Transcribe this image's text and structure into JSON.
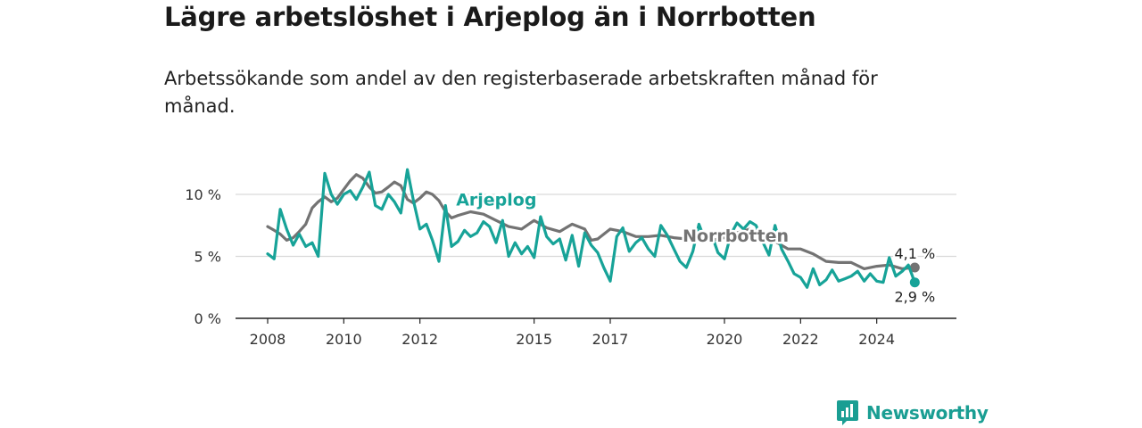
{
  "title": "Lägre arbetslöshet i Arjeplog än i Norrbotten",
  "subtitle": "Arbetssökande som andel av den registerbaserade arbetskraften månad för månad.",
  "brand": {
    "name": "Newsworthy"
  },
  "colors": {
    "arjeplog": "#17a398",
    "norrbotten": "#737373",
    "grid": "#d9d9d9",
    "axis": "#222222",
    "brand": "#1a9e93"
  },
  "chart_data": {
    "type": "line",
    "title": "Lägre arbetslöshet i Arjeplog än i Norrbotten",
    "xlim": [
      2008,
      2025.25
    ],
    "ylim": [
      0,
      12
    ],
    "grid": "horizontal",
    "x_ticks": [
      {
        "value": 2008,
        "label": "2008"
      },
      {
        "value": 2010,
        "label": "2010"
      },
      {
        "value": 2012,
        "label": "2012"
      },
      {
        "value": 2015,
        "label": "2015"
      },
      {
        "value": 2017,
        "label": "2017"
      },
      {
        "value": 2020,
        "label": "2020"
      },
      {
        "value": 2022,
        "label": "2022"
      },
      {
        "value": 2024,
        "label": "2024"
      }
    ],
    "y_ticks": [
      {
        "value": 0,
        "label": "0 %"
      },
      {
        "value": 5,
        "label": "5 %"
      },
      {
        "value": 10,
        "label": "10 %"
      }
    ],
    "series": [
      {
        "name": "Norrbotten",
        "color": "#737373",
        "end_label": "4,1 %",
        "label_pos": [
          2018.9,
          6.2
        ],
        "points": [
          [
            2008.0,
            7.4
          ],
          [
            2008.17,
            7.1
          ],
          [
            2008.33,
            6.8
          ],
          [
            2008.5,
            6.3
          ],
          [
            2008.67,
            6.5
          ],
          [
            2008.83,
            7.0
          ],
          [
            2009.0,
            7.6
          ],
          [
            2009.17,
            8.9
          ],
          [
            2009.33,
            9.4
          ],
          [
            2009.5,
            9.8
          ],
          [
            2009.67,
            9.4
          ],
          [
            2009.83,
            9.7
          ],
          [
            2010.0,
            10.4
          ],
          [
            2010.17,
            11.1
          ],
          [
            2010.33,
            11.6
          ],
          [
            2010.5,
            11.3
          ],
          [
            2010.67,
            10.6
          ],
          [
            2010.83,
            10.1
          ],
          [
            2011.0,
            10.2
          ],
          [
            2011.17,
            10.6
          ],
          [
            2011.33,
            11.0
          ],
          [
            2011.5,
            10.7
          ],
          [
            2011.67,
            9.6
          ],
          [
            2011.83,
            9.3
          ],
          [
            2012.0,
            9.7
          ],
          [
            2012.17,
            10.2
          ],
          [
            2012.33,
            10.0
          ],
          [
            2012.5,
            9.5
          ],
          [
            2012.67,
            8.6
          ],
          [
            2012.83,
            8.1
          ],
          [
            2013.0,
            8.3
          ],
          [
            2013.33,
            8.6
          ],
          [
            2013.67,
            8.4
          ],
          [
            2014.0,
            7.9
          ],
          [
            2014.33,
            7.4
          ],
          [
            2014.67,
            7.2
          ],
          [
            2015.0,
            7.9
          ],
          [
            2015.33,
            7.3
          ],
          [
            2015.67,
            7.0
          ],
          [
            2016.0,
            7.6
          ],
          [
            2016.33,
            7.2
          ],
          [
            2016.5,
            6.3
          ],
          [
            2016.67,
            6.4
          ],
          [
            2017.0,
            7.2
          ],
          [
            2017.33,
            7.0
          ],
          [
            2017.67,
            6.6
          ],
          [
            2018.0,
            6.6
          ],
          [
            2018.33,
            6.7
          ],
          [
            2018.67,
            6.5
          ],
          [
            2019.0,
            6.4
          ],
          [
            2019.33,
            6.6
          ],
          [
            2019.67,
            6.3
          ],
          [
            2020.0,
            6.5
          ],
          [
            2020.33,
            6.9
          ],
          [
            2020.67,
            7.2
          ],
          [
            2021.0,
            6.8
          ],
          [
            2021.33,
            6.2
          ],
          [
            2021.67,
            5.6
          ],
          [
            2022.0,
            5.6
          ],
          [
            2022.33,
            5.2
          ],
          [
            2022.67,
            4.6
          ],
          [
            2023.0,
            4.5
          ],
          [
            2023.33,
            4.5
          ],
          [
            2023.67,
            4.0
          ],
          [
            2024.0,
            4.2
          ],
          [
            2024.33,
            4.3
          ],
          [
            2024.67,
            4.0
          ],
          [
            2025.0,
            4.1
          ]
        ]
      },
      {
        "name": "Arjeplog",
        "color": "#17a398",
        "end_label": "2,9 %",
        "label_pos": [
          2012.95,
          9.1
        ],
        "points": [
          [
            2008.0,
            5.2
          ],
          [
            2008.17,
            4.8
          ],
          [
            2008.33,
            8.8
          ],
          [
            2008.5,
            7.2
          ],
          [
            2008.67,
            5.9
          ],
          [
            2008.83,
            6.8
          ],
          [
            2009.0,
            5.8
          ],
          [
            2009.17,
            6.1
          ],
          [
            2009.33,
            5.0
          ],
          [
            2009.5,
            11.7
          ],
          [
            2009.67,
            10.0
          ],
          [
            2009.83,
            9.2
          ],
          [
            2010.0,
            10.0
          ],
          [
            2010.17,
            10.3
          ],
          [
            2010.33,
            9.6
          ],
          [
            2010.5,
            10.6
          ],
          [
            2010.67,
            11.8
          ],
          [
            2010.83,
            9.1
          ],
          [
            2011.0,
            8.8
          ],
          [
            2011.17,
            10.0
          ],
          [
            2011.33,
            9.4
          ],
          [
            2011.5,
            8.5
          ],
          [
            2011.67,
            12.0
          ],
          [
            2011.83,
            9.5
          ],
          [
            2012.0,
            7.2
          ],
          [
            2012.17,
            7.6
          ],
          [
            2012.33,
            6.3
          ],
          [
            2012.5,
            4.6
          ],
          [
            2012.67,
            9.1
          ],
          [
            2012.83,
            5.8
          ],
          [
            2013.0,
            6.2
          ],
          [
            2013.17,
            7.1
          ],
          [
            2013.33,
            6.6
          ],
          [
            2013.5,
            6.9
          ],
          [
            2013.67,
            7.8
          ],
          [
            2013.83,
            7.4
          ],
          [
            2014.0,
            6.1
          ],
          [
            2014.17,
            7.9
          ],
          [
            2014.33,
            5.0
          ],
          [
            2014.5,
            6.1
          ],
          [
            2014.67,
            5.2
          ],
          [
            2014.83,
            5.8
          ],
          [
            2015.0,
            4.9
          ],
          [
            2015.17,
            8.2
          ],
          [
            2015.33,
            6.6
          ],
          [
            2015.5,
            6.0
          ],
          [
            2015.67,
            6.4
          ],
          [
            2015.83,
            4.7
          ],
          [
            2016.0,
            6.7
          ],
          [
            2016.17,
            4.2
          ],
          [
            2016.33,
            6.9
          ],
          [
            2016.5,
            5.9
          ],
          [
            2016.67,
            5.3
          ],
          [
            2016.83,
            4.1
          ],
          [
            2017.0,
            3.0
          ],
          [
            2017.17,
            6.6
          ],
          [
            2017.33,
            7.3
          ],
          [
            2017.5,
            5.4
          ],
          [
            2017.67,
            6.1
          ],
          [
            2017.83,
            6.5
          ],
          [
            2018.0,
            5.6
          ],
          [
            2018.17,
            5.0
          ],
          [
            2018.33,
            7.5
          ],
          [
            2018.5,
            6.7
          ],
          [
            2018.67,
            5.6
          ],
          [
            2018.83,
            4.6
          ],
          [
            2019.0,
            4.1
          ],
          [
            2019.17,
            5.4
          ],
          [
            2019.33,
            7.6
          ],
          [
            2019.5,
            6.2
          ],
          [
            2019.67,
            6.7
          ],
          [
            2019.83,
            5.3
          ],
          [
            2020.0,
            4.8
          ],
          [
            2020.17,
            6.8
          ],
          [
            2020.33,
            7.7
          ],
          [
            2020.5,
            7.2
          ],
          [
            2020.67,
            7.8
          ],
          [
            2020.83,
            7.5
          ],
          [
            2021.0,
            6.2
          ],
          [
            2021.17,
            5.1
          ],
          [
            2021.33,
            7.5
          ],
          [
            2021.5,
            5.6
          ],
          [
            2021.67,
            4.6
          ],
          [
            2021.83,
            3.6
          ],
          [
            2022.0,
            3.3
          ],
          [
            2022.17,
            2.5
          ],
          [
            2022.33,
            4.0
          ],
          [
            2022.5,
            2.7
          ],
          [
            2022.67,
            3.1
          ],
          [
            2022.83,
            3.9
          ],
          [
            2023.0,
            3.0
          ],
          [
            2023.17,
            3.2
          ],
          [
            2023.33,
            3.4
          ],
          [
            2023.5,
            3.8
          ],
          [
            2023.67,
            3.0
          ],
          [
            2023.83,
            3.6
          ],
          [
            2024.0,
            3.0
          ],
          [
            2024.17,
            2.9
          ],
          [
            2024.33,
            4.9
          ],
          [
            2024.5,
            3.4
          ],
          [
            2024.67,
            3.8
          ],
          [
            2024.83,
            4.3
          ],
          [
            2025.0,
            2.9
          ]
        ]
      }
    ]
  }
}
